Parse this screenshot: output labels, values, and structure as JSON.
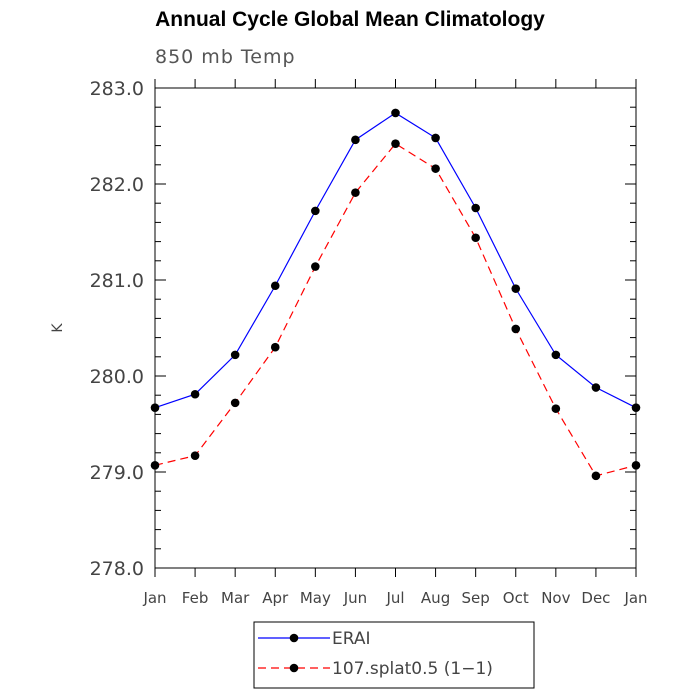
{
  "chart_data": {
    "type": "line",
    "title": "Annual Cycle Global Mean Climatology",
    "subtitle": "850 mb Temp",
    "xlabel": "",
    "ylabel": "K",
    "categories": [
      "Jan",
      "Feb",
      "Mar",
      "Apr",
      "May",
      "Jun",
      "Jul",
      "Aug",
      "Sep",
      "Oct",
      "Nov",
      "Dec",
      "Jan"
    ],
    "ylim": [
      278.0,
      283.0
    ],
    "yticks": [
      "278.0",
      "279.0",
      "280.0",
      "281.0",
      "282.0",
      "283.0"
    ],
    "series": [
      {
        "name": "ERAI",
        "color": "#0000ff",
        "dash": "solid",
        "values": [
          279.67,
          279.81,
          280.22,
          280.94,
          281.72,
          282.46,
          282.74,
          282.48,
          281.75,
          280.91,
          280.22,
          279.88,
          279.67
        ]
      },
      {
        "name": "107.splat0.5 (1−1)",
        "color": "#ff0000",
        "dash": "dashed",
        "values": [
          279.07,
          279.17,
          279.72,
          280.3,
          281.14,
          281.91,
          282.42,
          282.16,
          281.44,
          280.49,
          279.66,
          278.96,
          279.07
        ]
      }
    ],
    "legend_position": "bottom-center",
    "grid": false
  }
}
